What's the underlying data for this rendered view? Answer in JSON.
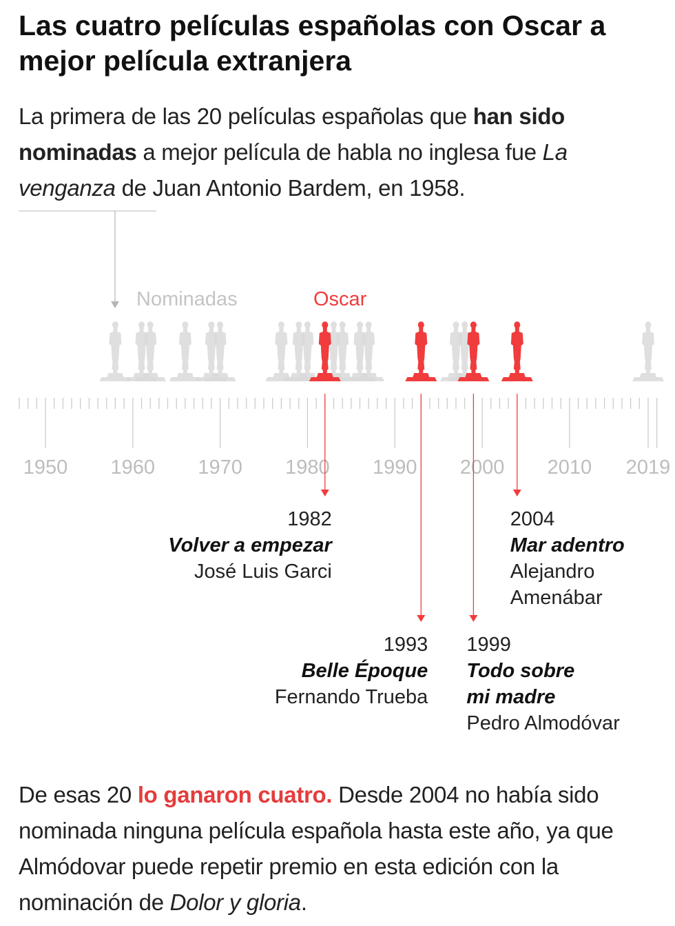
{
  "title": "Las cuatro películas españolas con Oscar a mejor película extranjera",
  "intro": {
    "part1": "La primera de las  20 películas españolas que ",
    "bold": "han sido nominadas",
    "part2": " a mejor película de habla no inglesa fue ",
    "film": "La venganza",
    "part3": " de Juan Antonio Bardem, en 1958."
  },
  "outro": {
    "part1": "De esas 20 ",
    "highlight": "lo ganaron cuatro.",
    "part2": " Desde 2004 no había sido nominada ninguna película española  hasta este año, ya que Almódovar puede repetir premio en esta edición con la nominación de ",
    "film": "Dolor y gloria",
    "part3": "."
  },
  "colors": {
    "oscar": "#f03c3c",
    "nominated": "#d9d9d9",
    "axis": "#c8c8c8",
    "tick_label": "#bdbdbd"
  },
  "chart_data": {
    "type": "timeline",
    "xlim": [
      1950,
      2019
    ],
    "tick_labels": [
      "1950",
      "1960",
      "1970",
      "1980",
      "1990",
      "2000",
      "2010",
      "2019"
    ],
    "legend": [
      {
        "label": "Nominadas",
        "color": "#c4c4c4"
      },
      {
        "label": "Oscar",
        "color": "#f03c3c"
      }
    ],
    "nominated_years": [
      1958,
      1961,
      1962,
      1966,
      1969,
      1970,
      1977,
      1979,
      1980,
      1983,
      1984,
      1986,
      1987,
      1997,
      1998,
      2019
    ],
    "oscar_years": [
      1982,
      1993,
      1999,
      2004
    ],
    "winners": [
      {
        "year": "1982",
        "title": "Volver a empezar",
        "director_lines": [
          "José Luis Garci"
        ],
        "align": "right"
      },
      {
        "year": "1993",
        "title_lines": [
          "Belle Époque"
        ],
        "director_lines": [
          "Fernando Trueba"
        ],
        "align": "right"
      },
      {
        "year": "1999",
        "title_lines": [
          "Todo sobre",
          "mi madre"
        ],
        "director_lines": [
          "Pedro Almodóvar"
        ],
        "align": "left"
      },
      {
        "year": "2004",
        "title_lines": [
          "Mar adentro"
        ],
        "director_lines": [
          "Alejandro",
          "Amenábar"
        ],
        "align": "left"
      }
    ]
  }
}
